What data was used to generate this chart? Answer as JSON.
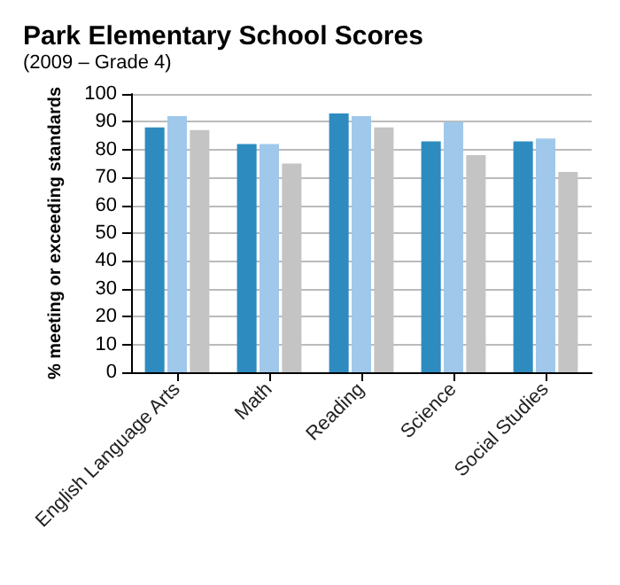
{
  "chart_data": {
    "type": "bar",
    "title": "Park Elementary School Scores",
    "subtitle": "(2009 – Grade 4)",
    "ylabel": "% meeting or exceeding standards",
    "categories": [
      "English Language Arts",
      "Math",
      "Reading",
      "Science",
      "Social Studies"
    ],
    "series": [
      {
        "color": "#2e8bc0",
        "values": [
          88,
          82,
          93,
          83,
          83
        ]
      },
      {
        "color": "#a0c8ea",
        "values": [
          92,
          82,
          92,
          90,
          84
        ]
      },
      {
        "color": "#c4c4c4",
        "values": [
          87,
          75,
          88,
          78,
          72
        ]
      }
    ],
    "ylim": [
      0,
      100
    ],
    "yticks": [
      0,
      10,
      20,
      30,
      40,
      50,
      60,
      70,
      80,
      90,
      100
    ],
    "grid": "y"
  }
}
